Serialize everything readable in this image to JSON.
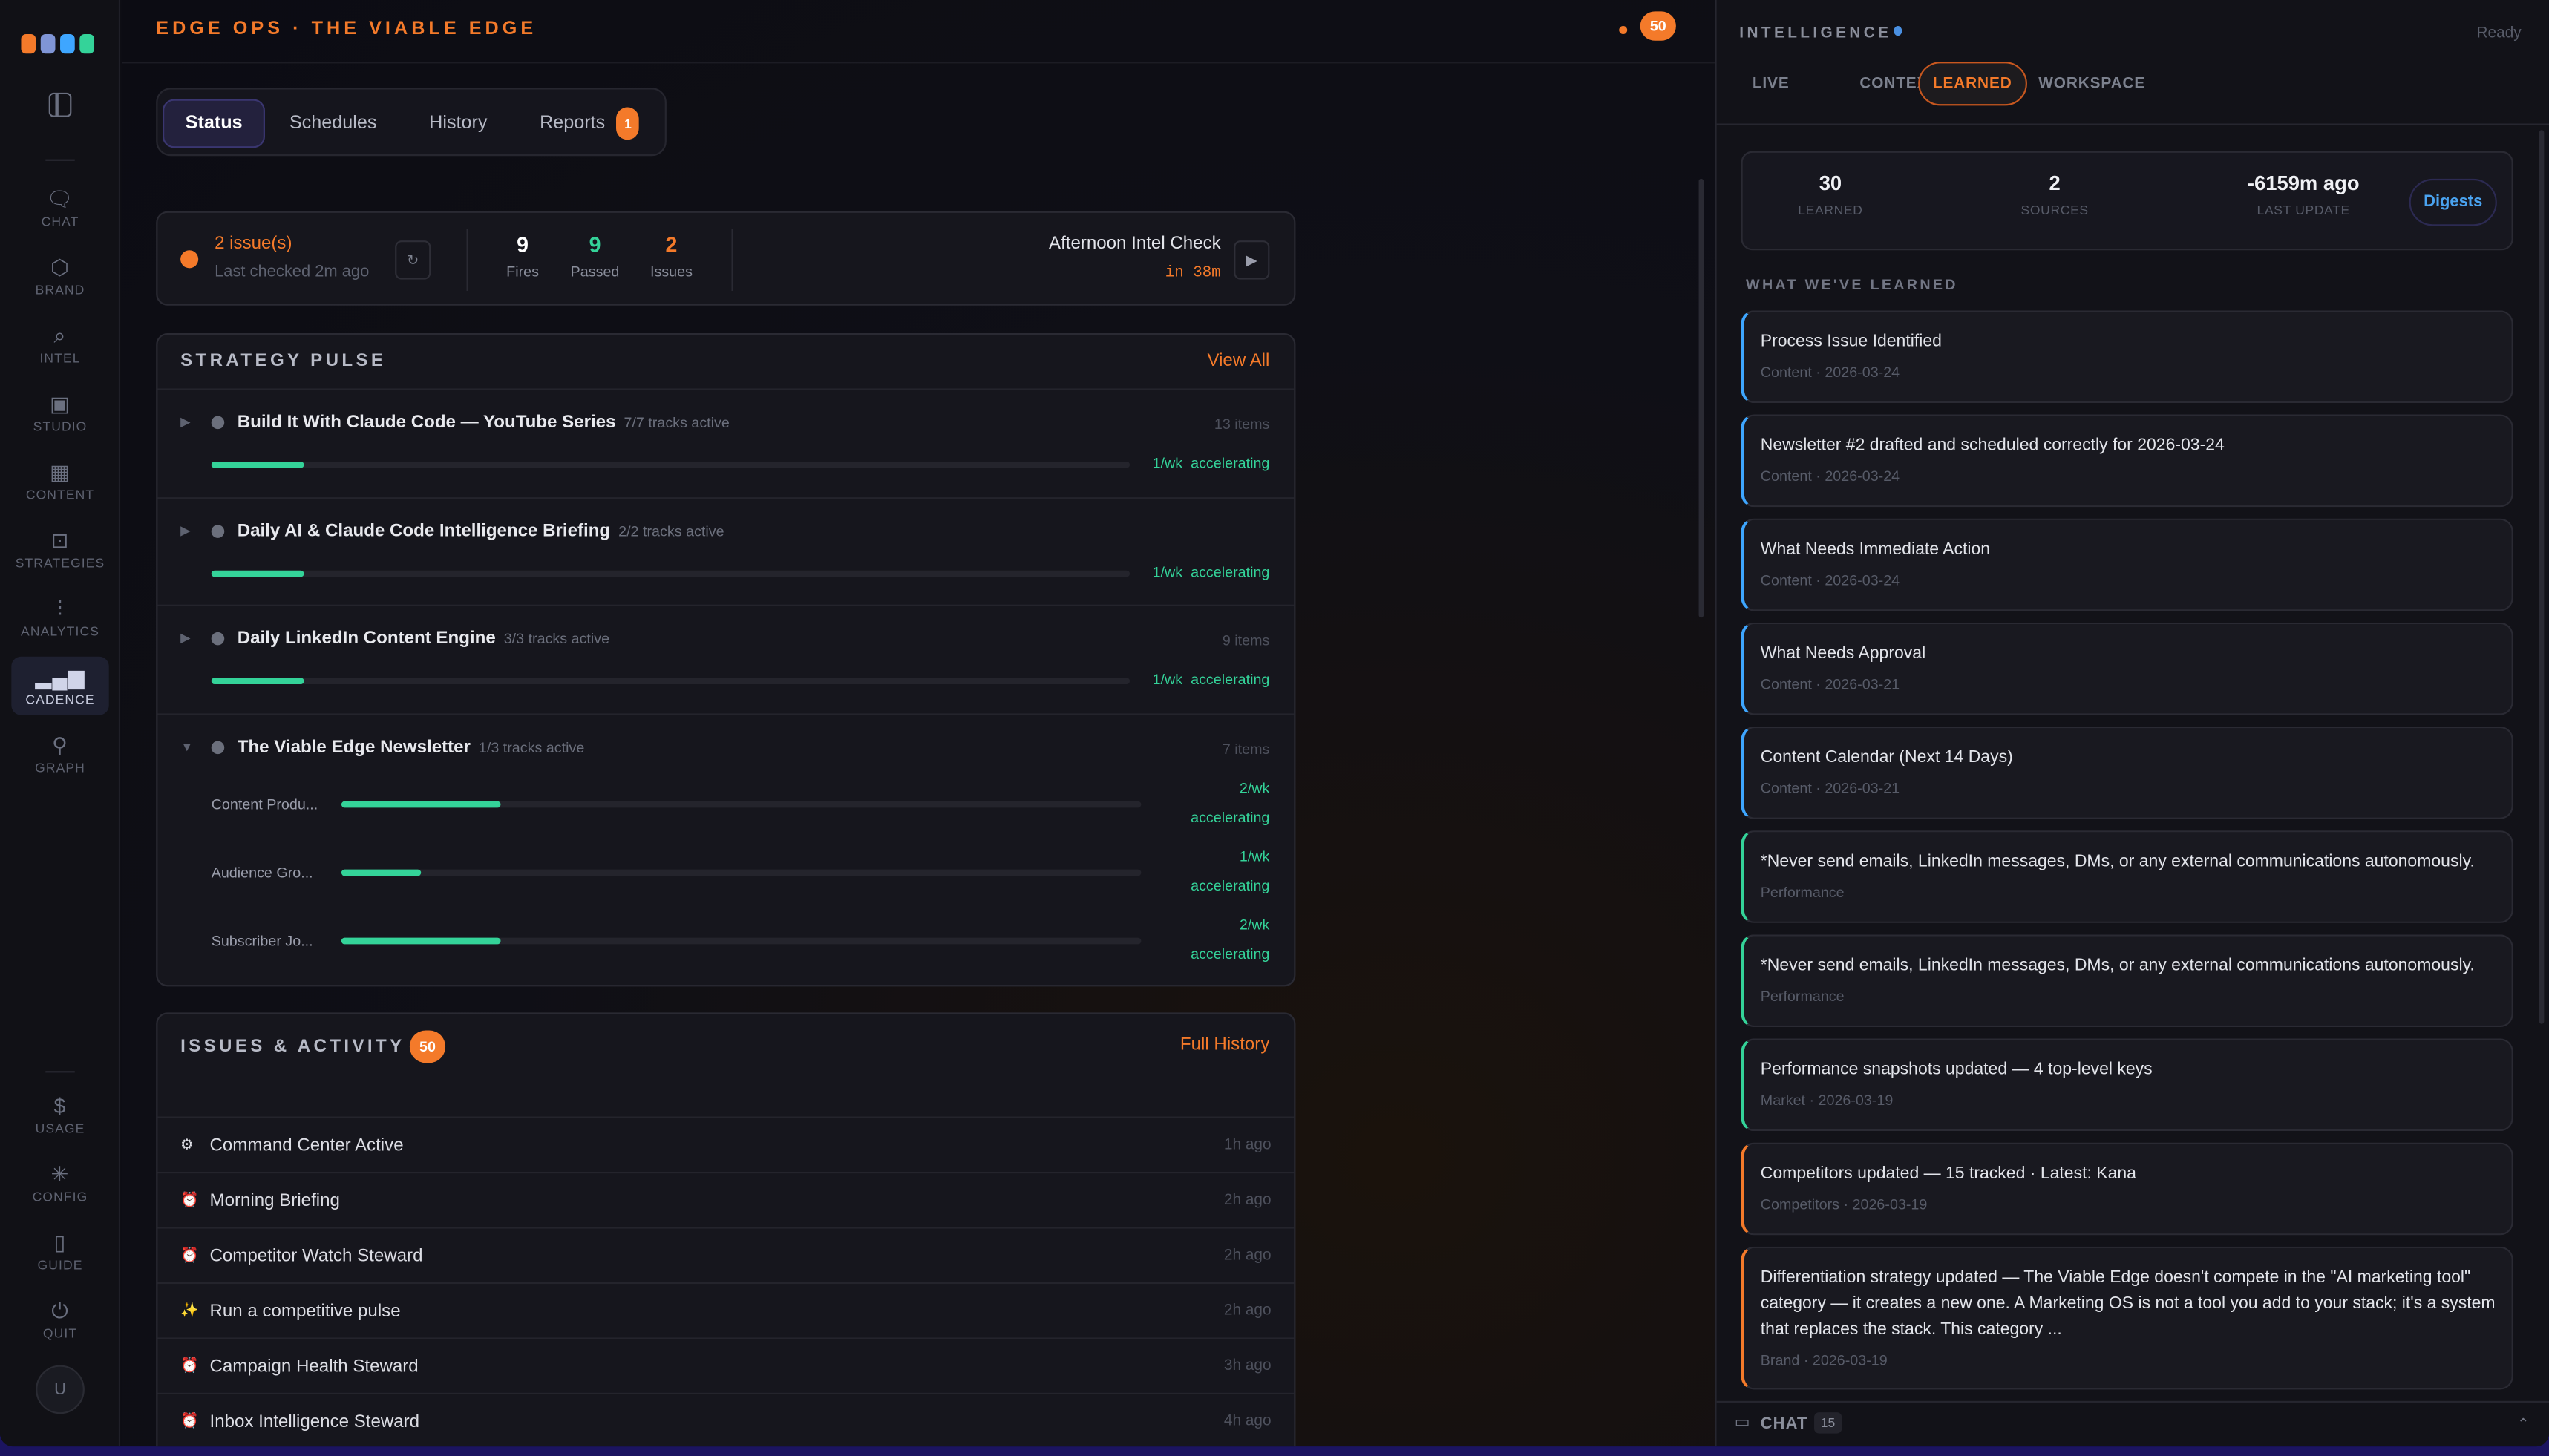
{
  "sidebar": {
    "logo_colors": [
      "#f47a2a",
      "#7f95d6",
      "#3ea6ff",
      "#34d399"
    ],
    "items": [
      {
        "label": "CHAT",
        "icon": "chat-bubble-icon",
        "glyph": "🗨"
      },
      {
        "label": "BRAND",
        "icon": "hexagon-icon",
        "glyph": "⬡"
      },
      {
        "label": "INTEL",
        "icon": "search-icon",
        "glyph": "⌕"
      },
      {
        "label": "STUDIO",
        "icon": "image-icon",
        "glyph": "▣"
      },
      {
        "label": "CONTENT",
        "icon": "calendar-icon",
        "glyph": "▦"
      },
      {
        "label": "STRATEGIES",
        "icon": "book-open-icon",
        "glyph": "⊡"
      },
      {
        "label": "ANALYTICS",
        "icon": "bar-chart-icon",
        "glyph": "⫶"
      },
      {
        "label": "CADENCE",
        "icon": "signal-bars-icon",
        "glyph": "▂▄▆",
        "active": true
      },
      {
        "label": "GRAPH",
        "icon": "graph-nodes-icon",
        "glyph": "⚲"
      }
    ],
    "bottom_items": [
      {
        "label": "USAGE",
        "icon": "dollar-icon",
        "glyph": "$"
      },
      {
        "label": "CONFIG",
        "icon": "asterisk-gear-icon",
        "glyph": "✳"
      },
      {
        "label": "GUIDE",
        "icon": "book-icon",
        "glyph": "▯"
      },
      {
        "label": "QUIT",
        "icon": "power-icon",
        "glyph": "⏻"
      }
    ],
    "avatar": "U"
  },
  "header": {
    "title": "EDGE OPS · THE VIABLE EDGE",
    "notification_count": "50"
  },
  "tabs": [
    {
      "label": "Status",
      "active": true
    },
    {
      "label": "Schedules"
    },
    {
      "label": "History"
    },
    {
      "label": "Reports",
      "badge": "1"
    }
  ],
  "status": {
    "issues": "2 issue(s)",
    "last_checked": "Last checked 2m ago",
    "refresh_glyph": "↻",
    "fires": {
      "value": "9",
      "label": "Fires"
    },
    "passed": {
      "value": "9",
      "label": "Passed"
    },
    "issue_count": {
      "value": "2",
      "label": "Issues"
    },
    "next_check": "Afternoon Intel Check",
    "next_in": "in 38m"
  },
  "pulse": {
    "title": "STRATEGY PULSE",
    "view_all": "View All",
    "strategies": [
      {
        "name": "Build It With Claude Code — YouTube Series",
        "tracks": "7/7 tracks active",
        "items": "13 items",
        "progress": 10,
        "rate": "1/wk",
        "trend": "accelerating"
      },
      {
        "name": "Daily AI & Claude Code Intelligence Briefing",
        "tracks": "2/2 tracks active",
        "items": "",
        "progress": 10,
        "rate": "1/wk",
        "trend": "accelerating"
      },
      {
        "name": "Daily LinkedIn Content Engine",
        "tracks": "3/3 tracks active",
        "items": "9 items",
        "progress": 10,
        "rate": "1/wk",
        "trend": "accelerating"
      },
      {
        "name": "The Viable Edge Newsletter",
        "tracks": "1/3 tracks active",
        "items": "7 items",
        "expanded": true,
        "tracks_list": [
          {
            "name": "Content Produ...",
            "progress": 20,
            "rate": "2/wk",
            "trend": "accelerating"
          },
          {
            "name": "Audience Gro...",
            "progress": 10,
            "rate": "1/wk",
            "trend": "accelerating"
          },
          {
            "name": "Subscriber Jo...",
            "progress": 20,
            "rate": "2/wk",
            "trend": "accelerating"
          }
        ]
      }
    ]
  },
  "activity": {
    "title": "ISSUES & ACTIVITY",
    "count": "50",
    "full_history": "Full History",
    "items": [
      {
        "icon": "gear-icon",
        "glyph": "⚙",
        "label": "Command Center Active",
        "time": "1h ago"
      },
      {
        "icon": "alarm-clock-icon",
        "glyph": "⏰",
        "label": "Morning Briefing",
        "time": "2h ago"
      },
      {
        "icon": "alarm-clock-icon",
        "glyph": "⏰",
        "label": "Competitor Watch Steward",
        "time": "2h ago"
      },
      {
        "icon": "sparkles-icon",
        "glyph": "✨",
        "label": "Run a competitive pulse",
        "time": "2h ago"
      },
      {
        "icon": "alarm-clock-icon",
        "glyph": "⏰",
        "label": "Campaign Health Steward",
        "time": "3h ago"
      },
      {
        "icon": "alarm-clock-icon",
        "glyph": "⏰",
        "label": "Inbox Intelligence Steward",
        "time": "4h ago"
      }
    ]
  },
  "intel": {
    "title": "INTELLIGENCE",
    "status": "Ready",
    "tabs": [
      {
        "label": "LIVE"
      },
      {
        "label": "CONTEXT"
      },
      {
        "label": "LEARNED",
        "active": true
      },
      {
        "label": "WORKSPACE"
      }
    ],
    "stats": [
      {
        "value": "30",
        "label": "LEARNED"
      },
      {
        "value": "2",
        "label": "SOURCES"
      },
      {
        "value": "-6159m ago",
        "label": "LAST UPDATE"
      }
    ],
    "digests": "Digests",
    "section": "WHAT WE'VE LEARNED",
    "learned": [
      {
        "text": "Process Issue Identified",
        "meta": "Content · 2026-03-24",
        "color": "#3ea6ff"
      },
      {
        "text": "Newsletter #2 drafted and scheduled correctly for 2026-03-24",
        "meta": "Content · 2026-03-24",
        "color": "#3ea6ff"
      },
      {
        "text": "What Needs Immediate Action",
        "meta": "Content · 2026-03-24",
        "color": "#3ea6ff"
      },
      {
        "text": "What Needs Approval",
        "meta": "Content · 2026-03-21",
        "color": "#3ea6ff"
      },
      {
        "text": "Content Calendar (Next 14 Days)",
        "meta": "Content · 2026-03-21",
        "color": "#3ea6ff"
      },
      {
        "text": "*Never send emails, LinkedIn messages, DMs, or any external communications autonomously.",
        "meta": "Performance",
        "color": "#34d399"
      },
      {
        "text": "*Never send emails, LinkedIn messages, DMs, or any external communications autonomously.",
        "meta": "Performance",
        "color": "#34d399"
      },
      {
        "text": "Performance snapshots updated — 4 top-level keys",
        "meta": "Market · 2026-03-19",
        "color": "#34d399"
      },
      {
        "text": "Competitors updated — 15 tracked · Latest: Kana",
        "meta": "Competitors · 2026-03-19",
        "color": "#f47a2a"
      },
      {
        "text": "Differentiation strategy updated — The Viable Edge doesn't compete in the \"AI marketing tool\" category — it creates a new one. A Marketing OS is not a tool you add to your stack; it's a system that replaces the stack. This category ...",
        "meta": "Brand · 2026-03-19",
        "color": "#f47a2a"
      }
    ],
    "chat": {
      "label": "CHAT",
      "count": "15",
      "chevron": "⌃"
    }
  }
}
